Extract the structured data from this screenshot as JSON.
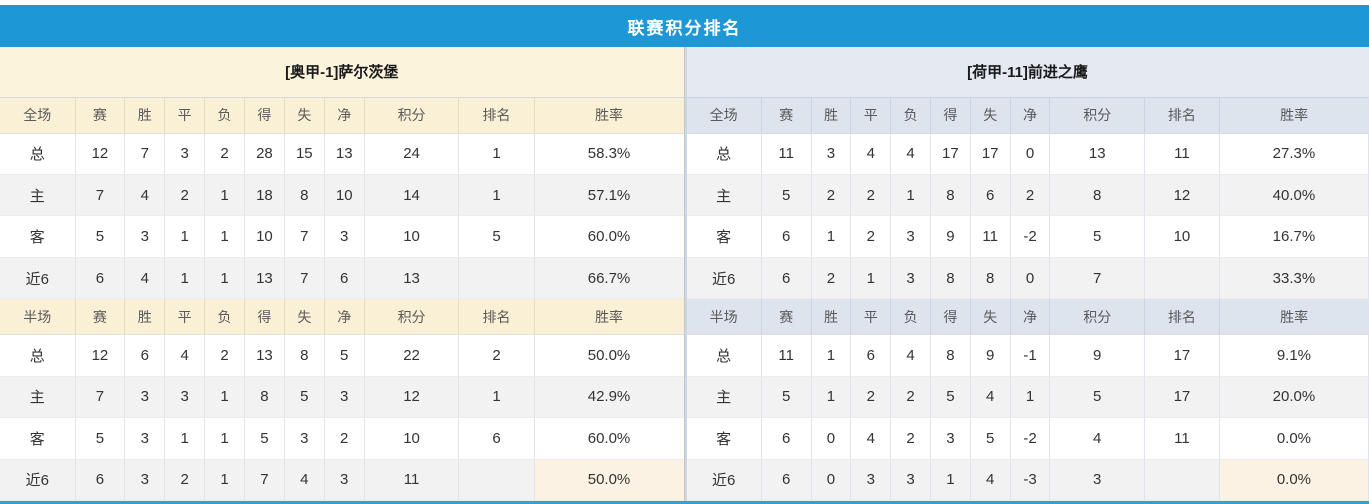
{
  "title": "联赛积分排名",
  "scopes": {
    "full": "全场",
    "half": "半场"
  },
  "columns": [
    "赛",
    "胜",
    "平",
    "负",
    "得",
    "失",
    "净",
    "积分",
    "排名",
    "胜率"
  ],
  "teams": {
    "left": {
      "name": "[奥甲-1]萨尔茨堡",
      "full": [
        {
          "label": "总",
          "cells": [
            "12",
            "7",
            "3",
            "2",
            "28",
            "15",
            "13",
            "24",
            "1",
            "58.3%"
          ]
        },
        {
          "label": "主",
          "cells": [
            "7",
            "4",
            "2",
            "1",
            "18",
            "8",
            "10",
            "14",
            "1",
            "57.1%"
          ]
        },
        {
          "label": "客",
          "cells": [
            "5",
            "3",
            "1",
            "1",
            "10",
            "7",
            "3",
            "10",
            "5",
            "60.0%"
          ]
        },
        {
          "label": "近6",
          "cells": [
            "6",
            "4",
            "1",
            "1",
            "13",
            "7",
            "6",
            "13",
            "",
            "66.7%"
          ]
        }
      ],
      "half": [
        {
          "label": "总",
          "cells": [
            "12",
            "6",
            "4",
            "2",
            "13",
            "8",
            "5",
            "22",
            "2",
            "50.0%"
          ]
        },
        {
          "label": "主",
          "cells": [
            "7",
            "3",
            "3",
            "1",
            "8",
            "5",
            "3",
            "12",
            "1",
            "42.9%"
          ]
        },
        {
          "label": "客",
          "cells": [
            "5",
            "3",
            "1",
            "1",
            "5",
            "3",
            "2",
            "10",
            "6",
            "60.0%"
          ]
        },
        {
          "label": "近6",
          "cells": [
            "6",
            "3",
            "2",
            "1",
            "7",
            "4",
            "3",
            "11",
            "",
            "50.0%"
          ]
        }
      ]
    },
    "right": {
      "name": "[荷甲-11]前进之鹰",
      "full": [
        {
          "label": "总",
          "cells": [
            "11",
            "3",
            "4",
            "4",
            "17",
            "17",
            "0",
            "13",
            "11",
            "27.3%"
          ]
        },
        {
          "label": "主",
          "cells": [
            "5",
            "2",
            "2",
            "1",
            "8",
            "6",
            "2",
            "8",
            "12",
            "40.0%"
          ]
        },
        {
          "label": "客",
          "cells": [
            "6",
            "1",
            "2",
            "3",
            "9",
            "11",
            "-2",
            "5",
            "10",
            "16.7%"
          ]
        },
        {
          "label": "近6",
          "cells": [
            "6",
            "2",
            "1",
            "3",
            "8",
            "8",
            "0",
            "7",
            "",
            "33.3%"
          ]
        }
      ],
      "half": [
        {
          "label": "总",
          "cells": [
            "11",
            "1",
            "6",
            "4",
            "8",
            "9",
            "-1",
            "9",
            "17",
            "9.1%"
          ]
        },
        {
          "label": "主",
          "cells": [
            "5",
            "1",
            "2",
            "2",
            "5",
            "4",
            "1",
            "5",
            "17",
            "20.0%"
          ]
        },
        {
          "label": "客",
          "cells": [
            "6",
            "0",
            "4",
            "2",
            "3",
            "5",
            "-2",
            "4",
            "11",
            "0.0%"
          ]
        },
        {
          "label": "近6",
          "cells": [
            "6",
            "0",
            "3",
            "3",
            "1",
            "4",
            "-3",
            "3",
            "",
            "0.0%"
          ]
        }
      ]
    }
  },
  "colors": {
    "title_bar_blue": "#1e97d6",
    "left_theme_cream": "#faf0d5",
    "right_theme_blue": "#dde4ee",
    "points_red": "#f03b25",
    "winrate_red": "#f03b25",
    "rank_blue": "#3a8ad8",
    "home_label_red": "#e5332c",
    "away_label_blue": "#5b5bd4",
    "alt_row_gray": "#f2f2f3",
    "highlight_warm": "#fbf2e4"
  }
}
